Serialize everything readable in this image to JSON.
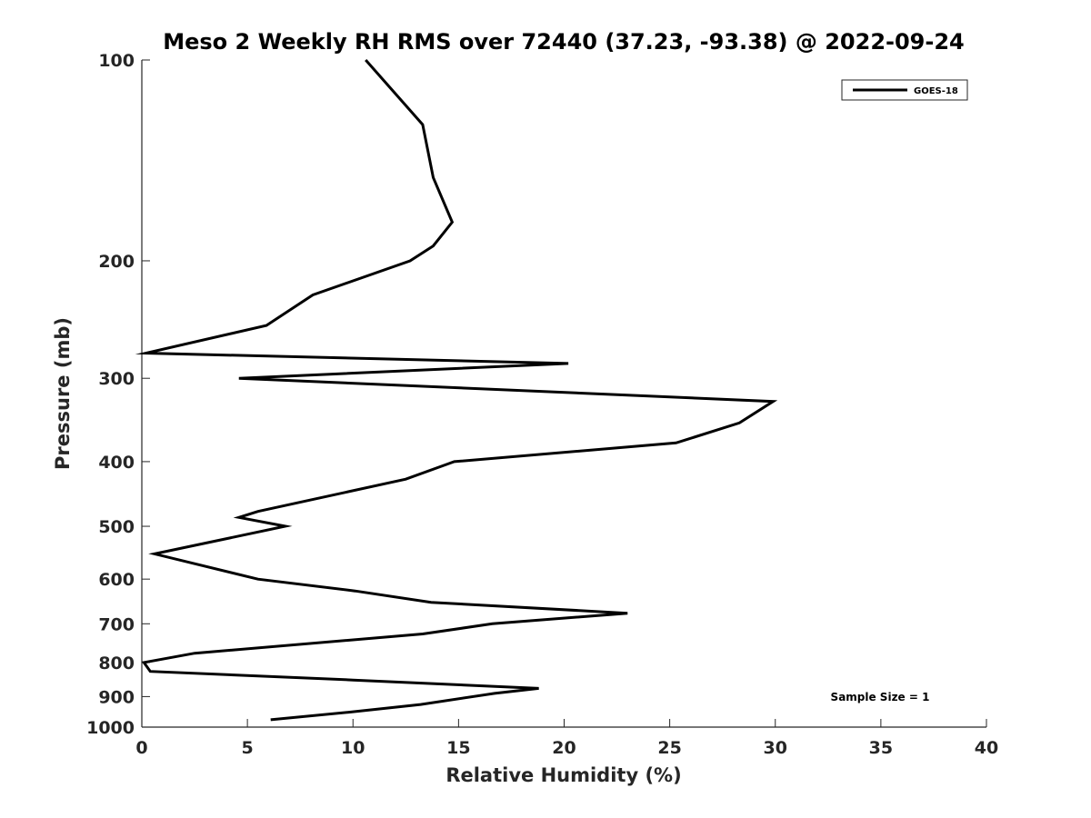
{
  "chart_data": {
    "type": "line",
    "title": "Meso 2 Weekly RH RMS over 72440 (37.23, -93.38) @ 2022-09-24",
    "xlabel": "Relative Humidity (%)",
    "ylabel": "Pressure (mb)",
    "xlim": [
      0,
      40
    ],
    "ylim": [
      100,
      1000
    ],
    "yscale": "log",
    "yreversed": true,
    "x_ticks": [
      "0",
      "5",
      "10",
      "15",
      "20",
      "25",
      "30",
      "35",
      "40"
    ],
    "y_ticks": [
      "100",
      "200",
      "300",
      "400",
      "500",
      "600",
      "700",
      "800",
      "900",
      "1000"
    ],
    "grid": false,
    "legend_position": "top-right",
    "series": [
      {
        "name": "GOES-18",
        "color": "#000000",
        "points": [
          {
            "x": 10.6,
            "y": 100
          },
          {
            "x": 13.3,
            "y": 125
          },
          {
            "x": 13.8,
            "y": 150
          },
          {
            "x": 14.7,
            "y": 175
          },
          {
            "x": 13.8,
            "y": 190
          },
          {
            "x": 12.7,
            "y": 200
          },
          {
            "x": 8.1,
            "y": 225
          },
          {
            "x": 5.9,
            "y": 250
          },
          {
            "x": 0.2,
            "y": 275
          },
          {
            "x": 20.2,
            "y": 285
          },
          {
            "x": 4.6,
            "y": 300
          },
          {
            "x": 29.9,
            "y": 325
          },
          {
            "x": 28.3,
            "y": 350
          },
          {
            "x": 25.3,
            "y": 375
          },
          {
            "x": 14.8,
            "y": 400
          },
          {
            "x": 12.5,
            "y": 425
          },
          {
            "x": 5.5,
            "y": 475
          },
          {
            "x": 4.6,
            "y": 485
          },
          {
            "x": 6.8,
            "y": 500
          },
          {
            "x": 0.6,
            "y": 550
          },
          {
            "x": 5.5,
            "y": 600
          },
          {
            "x": 10.1,
            "y": 625
          },
          {
            "x": 13.7,
            "y": 650
          },
          {
            "x": 23.0,
            "y": 675
          },
          {
            "x": 16.6,
            "y": 700
          },
          {
            "x": 13.3,
            "y": 725
          },
          {
            "x": 2.5,
            "y": 775
          },
          {
            "x": 0.1,
            "y": 800
          },
          {
            "x": 0.4,
            "y": 825
          },
          {
            "x": 10.0,
            "y": 850
          },
          {
            "x": 18.8,
            "y": 875
          },
          {
            "x": 16.7,
            "y": 890
          },
          {
            "x": 13.2,
            "y": 925
          },
          {
            "x": 9.8,
            "y": 950
          },
          {
            "x": 6.1,
            "y": 975
          }
        ]
      }
    ],
    "legend": [
      "GOES-18"
    ],
    "annotations": [
      "Sample Size = 1"
    ]
  }
}
